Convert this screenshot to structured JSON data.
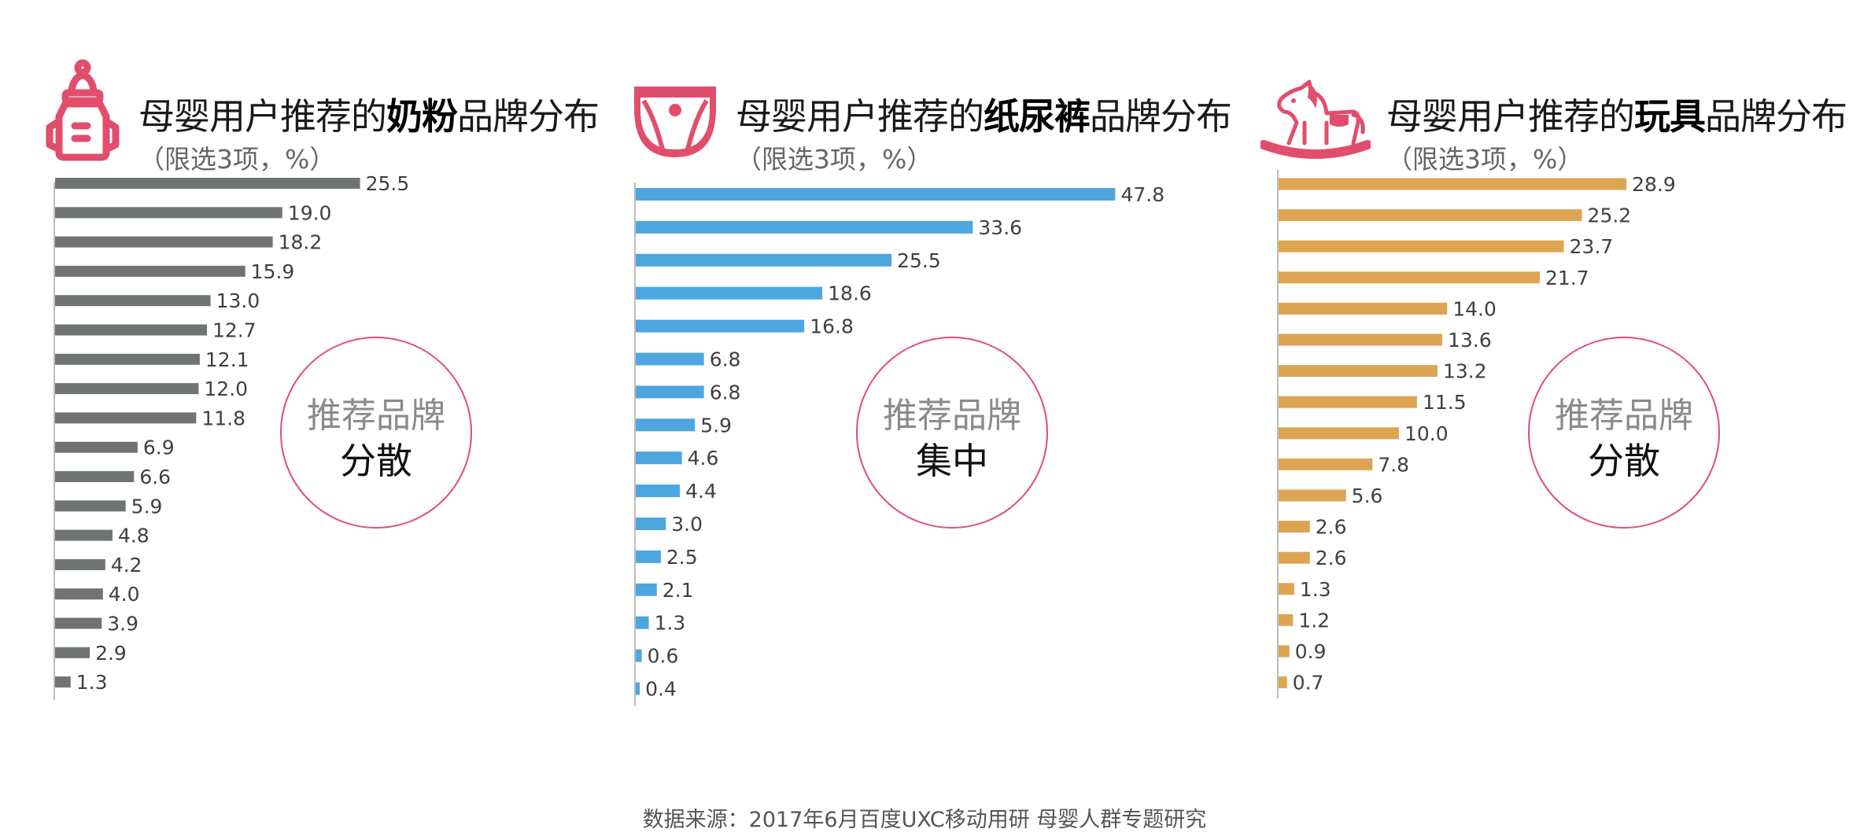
{
  "colors": {
    "accent_pink": "#e24d6c",
    "axis": "#bdbdbd"
  },
  "panels": [
    {
      "icon": "baby-bottle-icon",
      "title_prefix": "母婴用户推荐的",
      "title_bold": "奶粉",
      "title_suffix": "品牌分布",
      "subtitle": "（限选3项，%）",
      "badge_line1": "推荐品牌",
      "badge_line2": "分散",
      "bar_color": "#6f7472"
    },
    {
      "icon": "diaper-icon",
      "title_prefix": "母婴用户推荐的",
      "title_bold": "纸尿裤",
      "title_suffix": "品牌分布",
      "subtitle": "（限选3项，%）",
      "badge_line1": "推荐品牌",
      "badge_line2": "集中",
      "bar_color": "#4ea6e0"
    },
    {
      "icon": "rocking-horse-icon",
      "title_prefix": "母婴用户推荐的",
      "title_bold": "玩具",
      "title_suffix": "品牌分布",
      "subtitle": "（限选3项，%）",
      "badge_line1": "推荐品牌",
      "badge_line2": "分散",
      "bar_color": "#dda552"
    }
  ],
  "chart_data": [
    {
      "type": "bar",
      "orientation": "horizontal",
      "title": "母婴用户推荐的奶粉品牌分布",
      "subtitle": "（限选3项，%）",
      "values": [
        25.5,
        19.0,
        18.2,
        15.9,
        13.0,
        12.7,
        12.1,
        12.0,
        11.8,
        6.9,
        6.6,
        5.9,
        4.8,
        4.2,
        4.0,
        3.9,
        2.9,
        1.3
      ],
      "labels": [
        "25.5",
        "19.0",
        "18.2",
        "15.9",
        "13.0",
        "12.7",
        "12.1",
        "12.0",
        "11.8",
        "6.9",
        "6.6",
        "5.9",
        "4.8",
        "4.2",
        "4.0",
        "3.9",
        "2.9",
        "1.3"
      ],
      "grid": false
    },
    {
      "type": "bar",
      "orientation": "horizontal",
      "title": "母婴用户推荐的纸尿裤品牌分布",
      "subtitle": "（限选3项，%）",
      "values": [
        47.8,
        33.6,
        25.5,
        18.6,
        16.8,
        6.8,
        6.8,
        5.9,
        4.6,
        4.4,
        3.0,
        2.5,
        2.1,
        1.3,
        0.6,
        0.4
      ],
      "labels": [
        "47.8",
        "33.6",
        "25.5",
        "18.6",
        "16.8",
        "6.8",
        "6.8",
        "5.9",
        "4.6",
        "4.4",
        "3.0",
        "2.5",
        "2.1",
        "1.3",
        "0.6",
        "0.4"
      ],
      "grid": false
    },
    {
      "type": "bar",
      "orientation": "horizontal",
      "title": "母婴用户推荐的玩具品牌分布",
      "subtitle": "（限选3项，%）",
      "values": [
        28.9,
        25.2,
        23.7,
        21.7,
        14.0,
        13.6,
        13.2,
        11.5,
        10.0,
        7.8,
        5.6,
        2.6,
        2.6,
        1.3,
        1.2,
        0.9,
        0.7
      ],
      "labels": [
        "28.9",
        "25.2",
        "23.7",
        "21.7",
        "14.0",
        "13.6",
        "13.2",
        "11.5",
        "10.0",
        "7.8",
        "5.6",
        "2.6",
        "2.6",
        "1.3",
        "1.2",
        "0.9",
        "0.7"
      ],
      "grid": false
    }
  ],
  "footer": {
    "source": "数据来源：2017年6月百度UXC移动用研 母婴人群专题研究"
  }
}
